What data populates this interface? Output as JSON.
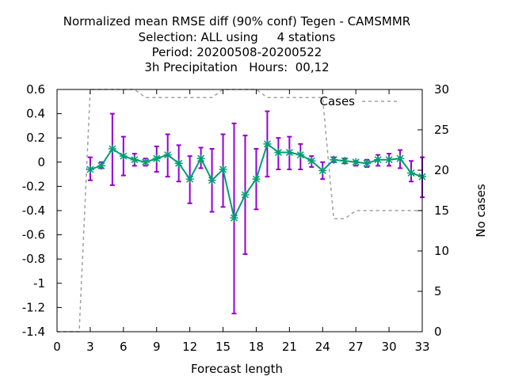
{
  "chart_data": {
    "type": "line",
    "title_lines": [
      "Normalized mean RMSE diff (90% conf) Tegen - CAMSMMR",
      "Selection: ALL using     4 stations",
      "Period: 20200508-20200522",
      "3h Precipitation   Hours:  00,12"
    ],
    "xlabel": "Forecast length",
    "ylabel_right": "No cases",
    "xlim": [
      0,
      33
    ],
    "ylim": [
      -1.4,
      0.6
    ],
    "y2lim": [
      0,
      30
    ],
    "x_ticks": [
      0,
      3,
      6,
      9,
      12,
      15,
      18,
      21,
      24,
      27,
      30,
      33
    ],
    "y_ticks": [
      -1.4,
      -1.2,
      -1,
      -0.8,
      -0.6,
      -0.4,
      -0.2,
      0,
      0.2,
      0.4,
      0.6
    ],
    "y_tick_labels": [
      "-1.4",
      "-1.2",
      "-1",
      "-0.8",
      "-0.6",
      "-0.4",
      "-0.2",
      "0",
      "0.2",
      "0.4",
      "0.6"
    ],
    "y2_ticks": [
      0,
      5,
      10,
      15,
      20,
      25,
      30
    ],
    "rmse_series": {
      "color": "#009e73",
      "error_color": "#9400d3",
      "x": [
        3,
        4,
        5,
        6,
        7,
        8,
        9,
        10,
        11,
        12,
        13,
        14,
        15,
        16,
        17,
        18,
        19,
        20,
        21,
        22,
        23,
        24,
        25,
        26,
        27,
        28,
        29,
        30,
        31,
        32,
        33
      ],
      "y": [
        -0.06,
        -0.03,
        0.11,
        0.05,
        0.02,
        0.0,
        0.03,
        0.06,
        -0.01,
        -0.14,
        0.03,
        -0.15,
        -0.06,
        -0.46,
        -0.27,
        -0.14,
        0.15,
        0.08,
        0.08,
        0.06,
        0.01,
        -0.07,
        0.02,
        0.01,
        0.0,
        -0.01,
        0.02,
        0.02,
        0.03,
        -0.09,
        -0.12
      ],
      "lower": [
        -0.15,
        -0.05,
        -0.19,
        -0.11,
        -0.03,
        -0.03,
        -0.08,
        -0.12,
        -0.16,
        -0.34,
        -0.05,
        -0.41,
        -0.37,
        -1.25,
        -0.76,
        -0.39,
        -0.12,
        -0.06,
        -0.06,
        -0.06,
        -0.04,
        -0.14,
        0.0,
        -0.01,
        -0.03,
        -0.04,
        -0.03,
        -0.03,
        -0.05,
        -0.16,
        -0.29
      ],
      "upper": [
        0.04,
        0.0,
        0.4,
        0.21,
        0.07,
        0.03,
        0.13,
        0.23,
        0.14,
        0.05,
        0.12,
        0.11,
        0.23,
        0.32,
        0.22,
        0.11,
        0.42,
        0.2,
        0.21,
        0.15,
        0.05,
        0.0,
        0.04,
        0.03,
        0.01,
        0.02,
        0.06,
        0.07,
        0.1,
        0.01,
        0.04
      ]
    },
    "cases_series": {
      "name": "Cases",
      "color": "#a0a0a0",
      "x": [
        0,
        1,
        2,
        3,
        4,
        5,
        6,
        7,
        8,
        9,
        10,
        11,
        12,
        13,
        14,
        15,
        16,
        17,
        18,
        19,
        20,
        21,
        22,
        23,
        24,
        25,
        26,
        27,
        28,
        29,
        30,
        31,
        32,
        33
      ],
      "values": [
        0,
        0,
        0,
        30,
        30,
        30,
        30,
        30,
        29,
        29,
        29,
        29,
        29,
        29,
        29,
        30,
        30,
        30,
        30,
        29,
        29,
        29,
        29,
        29,
        29,
        14,
        14,
        15,
        15,
        15,
        15,
        15,
        15,
        15
      ]
    },
    "legend_position": "top-right",
    "grid": false
  }
}
